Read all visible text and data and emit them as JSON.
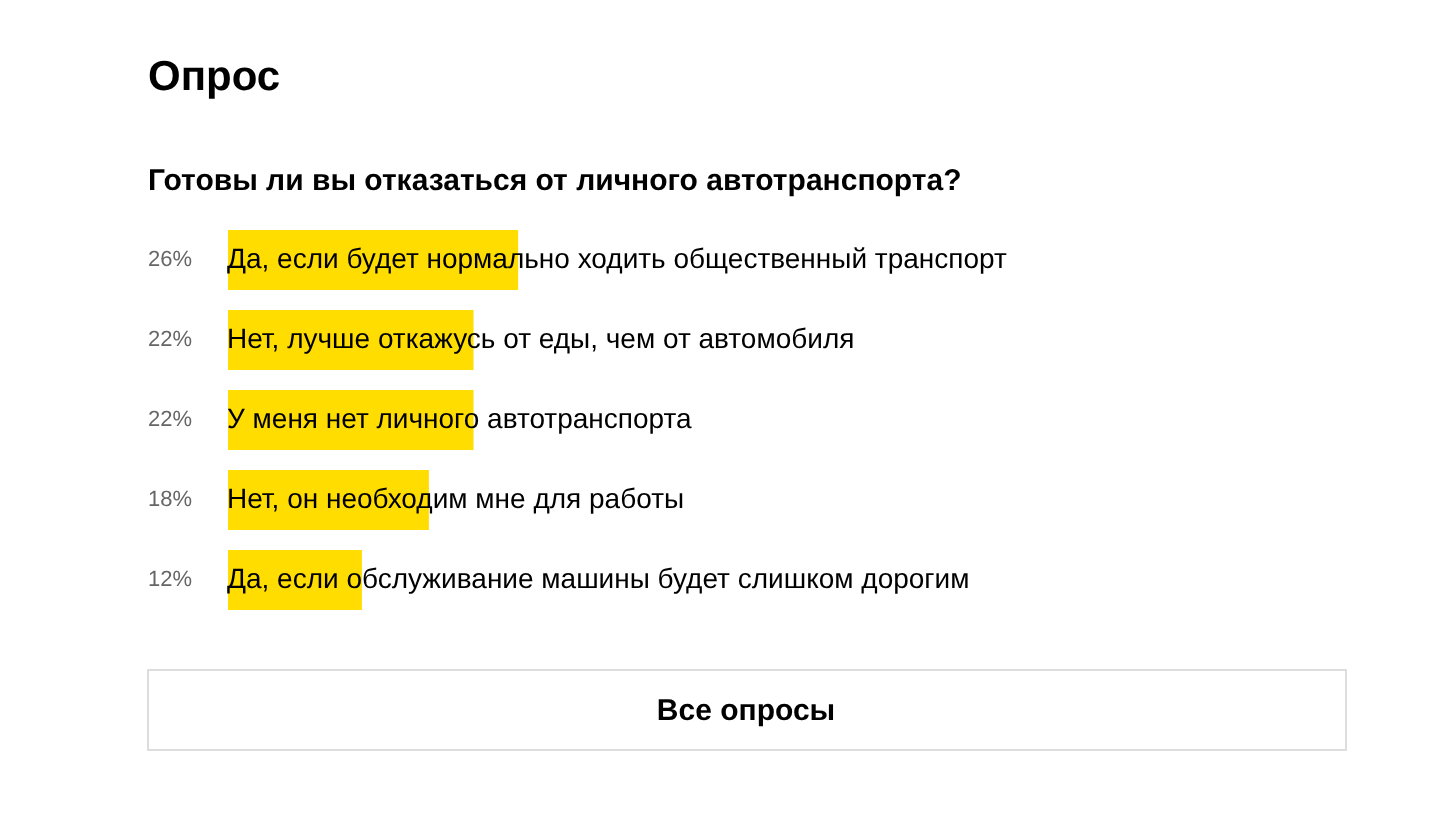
{
  "chart_data": {
    "type": "bar",
    "orientation": "horizontal",
    "title": "Опрос",
    "subtitle": "Готовы ли вы отказаться от личного автотранспорта?",
    "categories": [
      "Да, если будет нормально ходить общественный транспорт",
      "Нет, лучше откажусь от еды, чем от автомобиля",
      "У меня нет личного автотранспорта",
      "Нет, он необходим мне для работы",
      "Да, если обслуживание машины будет слишком дорогим"
    ],
    "values": [
      26,
      22,
      22,
      18,
      12
    ],
    "value_labels": [
      "26%",
      "22%",
      "22%",
      "18%",
      "12%"
    ],
    "color": "#ffdd00",
    "tick_labels": "y",
    "annotations": [
      "Все опросы"
    ]
  }
}
